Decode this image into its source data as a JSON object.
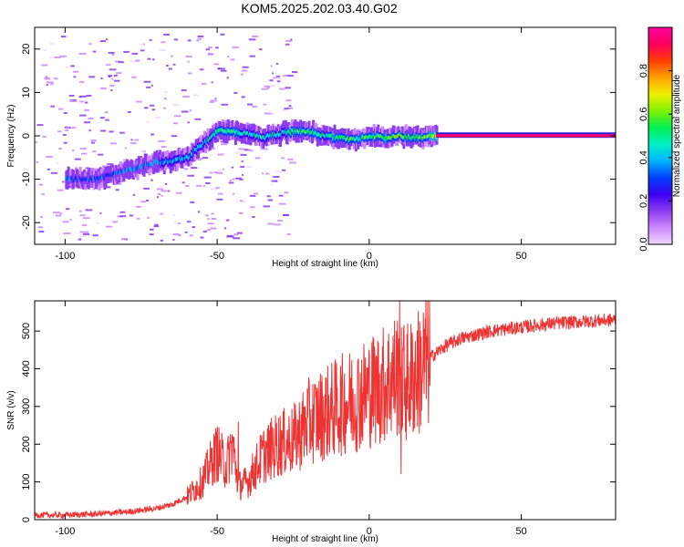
{
  "figure_title": "KOM5.2025.202.03.40.G02",
  "chart_data": [
    {
      "type": "heatmap",
      "xlabel": "Height of straight line (km)",
      "ylabel": "Frequency (Hz)",
      "xlim": [
        -110,
        81
      ],
      "ylim": [
        -25,
        25
      ],
      "xticks": [
        -100,
        -50,
        0,
        50
      ],
      "yticks": [
        -20,
        -10,
        0,
        10,
        20
      ],
      "colorbar": {
        "label": "Normalized spectral amplitude",
        "range": [
          0,
          1
        ],
        "ticks": [
          0.0,
          0.2,
          0.4,
          0.6,
          0.8
        ],
        "colors": [
          "#f0d8ff",
          "#cc88ff",
          "#8c3cf0",
          "#3c00f0",
          "#0040ff",
          "#00b4ff",
          "#00f0c8",
          "#00f050",
          "#80f000",
          "#f0f000",
          "#ffa000",
          "#ff3c00",
          "#ff0060",
          "#ff00a0"
        ]
      },
      "ridge": {
        "x": [
          -100,
          -95,
          -90,
          -85,
          -80,
          -75,
          -70,
          -65,
          -60,
          -55,
          -50,
          -45,
          -40,
          -35,
          -30,
          -25,
          -20,
          -15,
          -10,
          -5,
          0,
          5,
          10,
          15,
          20,
          22
        ],
        "y": [
          -10,
          -10,
          -10,
          -9,
          -8,
          -7,
          -6,
          -6,
          -5,
          -2,
          1,
          1,
          0.5,
          -0.5,
          0.5,
          1,
          1,
          0,
          -0.5,
          -1,
          0,
          -0.5,
          0,
          -0.5,
          0,
          0
        ],
        "amplitude": [
          0.35,
          0.3,
          0.3,
          0.3,
          0.35,
          0.35,
          0.35,
          0.4,
          0.4,
          0.4,
          0.5,
          0.5,
          0.45,
          0.45,
          0.45,
          0.5,
          0.55,
          0.45,
          0.55,
          0.5,
          0.5,
          0.6,
          0.55,
          0.55,
          0.6,
          0.7
        ]
      },
      "flat_band": {
        "x": [
          22,
          81
        ],
        "y": 0,
        "amplitude": 0.9
      }
    },
    {
      "type": "line",
      "xlabel": "Height of straight line (km)",
      "ylabel": "SNR (v/v)",
      "xlim": [
        -110,
        81
      ],
      "ylim": [
        0,
        580
      ],
      "xticks": [
        -100,
        -50,
        0,
        50
      ],
      "yticks": [
        0,
        100,
        200,
        300,
        400,
        500
      ],
      "color": "#ee3333",
      "envelope": {
        "x": [
          -110,
          -100,
          -90,
          -80,
          -70,
          -65,
          -60,
          -55,
          -52,
          -50,
          -47,
          -45,
          -43,
          -40,
          -35,
          -30,
          -25,
          -20,
          -15,
          -10,
          -5,
          0,
          5,
          8,
          10,
          12,
          15,
          20,
          25,
          30,
          40,
          50,
          60,
          70,
          81
        ],
        "y": [
          12,
          12,
          15,
          20,
          30,
          40,
          60,
          100,
          150,
          180,
          140,
          200,
          90,
          100,
          170,
          200,
          210,
          260,
          280,
          300,
          320,
          340,
          360,
          380,
          390,
          360,
          380,
          430,
          460,
          480,
          500,
          510,
          520,
          525,
          530
        ]
      },
      "spikes": [
        {
          "x": -50,
          "y": 230
        },
        {
          "x": -43,
          "y": 260
        },
        {
          "x": 10,
          "y": 590
        },
        {
          "x": 10.5,
          "y": 120
        }
      ]
    }
  ]
}
